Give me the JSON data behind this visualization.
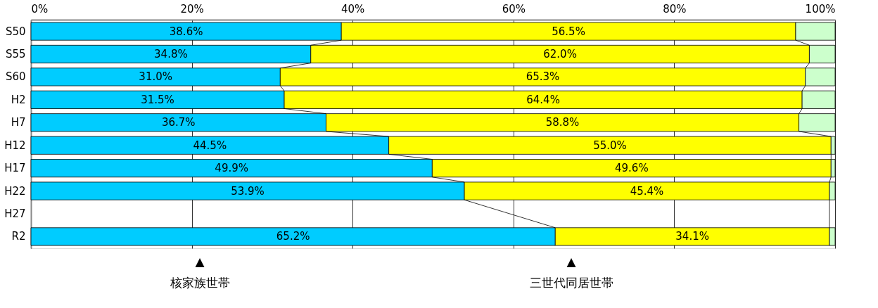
{
  "chart_data": {
    "type": "bar",
    "orientation": "horizontal",
    "stacked": true,
    "categories": [
      "S50",
      "S55",
      "S60",
      "H2",
      "H7",
      "H12",
      "H17",
      "H22",
      "H27",
      "R2"
    ],
    "series": [
      {
        "color": "#00ccff",
        "values": [
          38.6,
          34.8,
          31.0,
          31.5,
          36.7,
          44.5,
          49.9,
          53.9,
          null,
          65.2
        ],
        "value_labels": [
          "38.6%",
          "34.8%",
          "31.0%",
          "31.5%",
          "36.7%",
          "44.5%",
          "49.9%",
          "53.9%",
          null,
          "65.2%"
        ]
      },
      {
        "color": "#ffff00",
        "values": [
          56.5,
          62.0,
          65.3,
          64.4,
          58.8,
          55.0,
          49.6,
          45.4,
          null,
          34.1
        ],
        "value_labels": [
          "56.5%",
          "62.0%",
          "65.3%",
          "64.4%",
          "58.8%",
          "55.0%",
          "49.6%",
          "45.4%",
          null,
          "34.1%"
        ]
      },
      {
        "color": "#ccffcc",
        "values": [
          4.9,
          3.2,
          3.7,
          4.1,
          4.5,
          0.5,
          0.5,
          0.7,
          null,
          0.7
        ]
      }
    ],
    "xlim": [
      0,
      100
    ],
    "xticks": [
      {
        "value": 0,
        "label": "0%"
      },
      {
        "value": 20,
        "label": "20%"
      },
      {
        "value": 40,
        "label": "40%"
      },
      {
        "value": 60,
        "label": "60%"
      },
      {
        "value": 80,
        "label": "80%"
      },
      {
        "value": 100,
        "label": "100%"
      }
    ],
    "grid": "x",
    "legend": false,
    "annotations": [
      "▲\n核家族世帯",
      "▲\n三世代同居世帯"
    ]
  }
}
